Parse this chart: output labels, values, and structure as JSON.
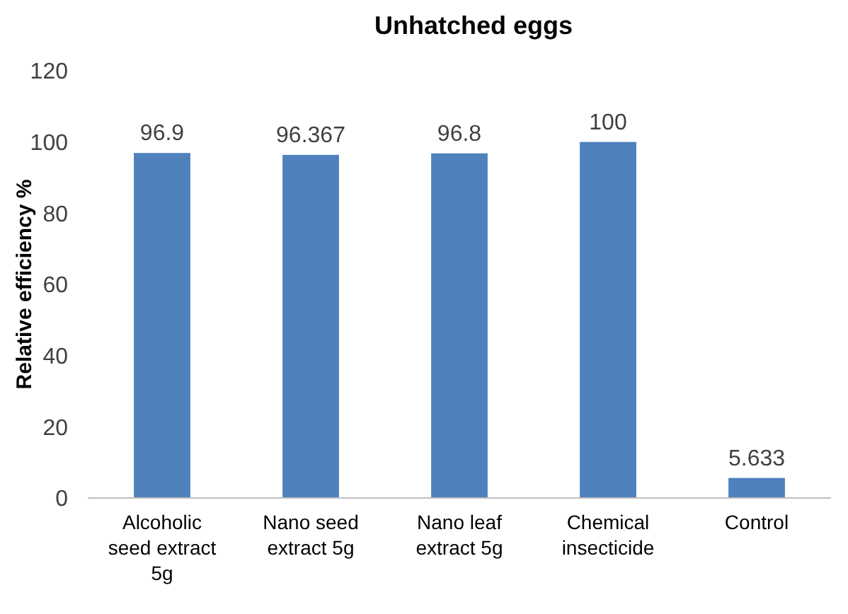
{
  "chart_data": {
    "type": "bar",
    "title": "Unhatched eggs",
    "ylabel": "Relative efficiency %",
    "categories": [
      "Alcoholic seed extract 5g",
      "Nano seed extract 5g",
      "Nano leaf extract 5g",
      "Chemical insecticide",
      "Control"
    ],
    "values": [
      96.9,
      96.367,
      96.8,
      100,
      5.633
    ],
    "color": "#4f81bd",
    "ylim": [
      0,
      120
    ],
    "yticks": [
      0,
      20,
      40,
      60,
      80,
      100,
      120
    ],
    "grid": false,
    "data_labels": true
  }
}
